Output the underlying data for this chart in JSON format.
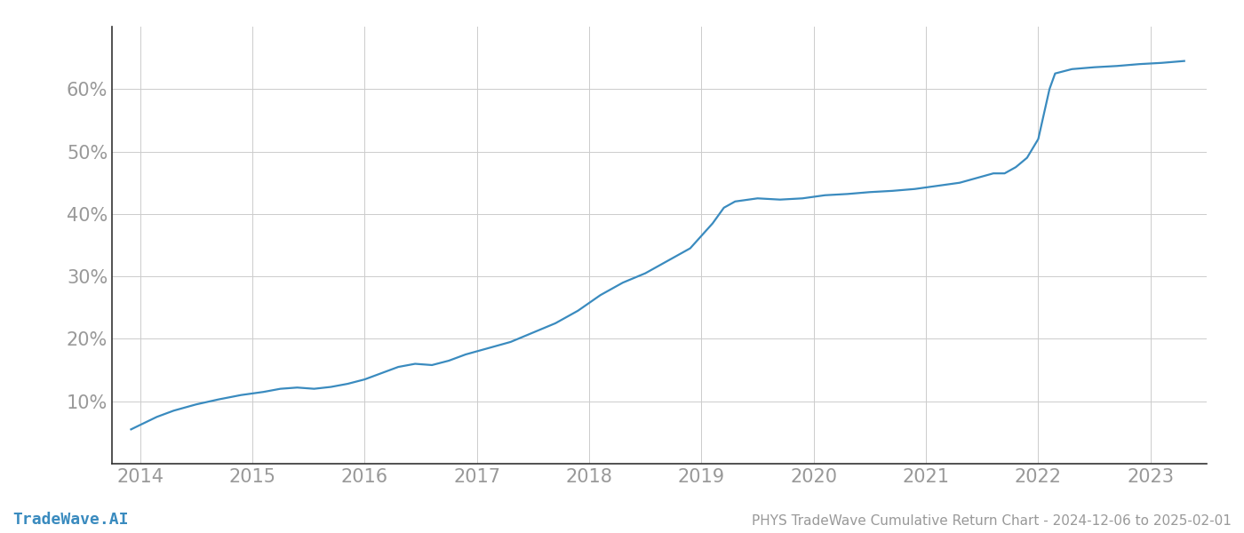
{
  "title": "PHYS TradeWave Cumulative Return Chart - 2024-12-06 to 2025-02-01",
  "watermark": "TradeWave.AI",
  "line_color": "#3a8bbf",
  "background_color": "#ffffff",
  "grid_color": "#cccccc",
  "x_years": [
    2014,
    2015,
    2016,
    2017,
    2018,
    2019,
    2020,
    2021,
    2022,
    2023
  ],
  "data_points": [
    [
      2013.92,
      5.5
    ],
    [
      2014.0,
      6.2
    ],
    [
      2014.15,
      7.5
    ],
    [
      2014.3,
      8.5
    ],
    [
      2014.5,
      9.5
    ],
    [
      2014.7,
      10.3
    ],
    [
      2014.9,
      11.0
    ],
    [
      2015.1,
      11.5
    ],
    [
      2015.25,
      12.0
    ],
    [
      2015.4,
      12.2
    ],
    [
      2015.55,
      12.0
    ],
    [
      2015.7,
      12.3
    ],
    [
      2015.85,
      12.8
    ],
    [
      2016.0,
      13.5
    ],
    [
      2016.15,
      14.5
    ],
    [
      2016.3,
      15.5
    ],
    [
      2016.45,
      16.0
    ],
    [
      2016.6,
      15.8
    ],
    [
      2016.75,
      16.5
    ],
    [
      2016.9,
      17.5
    ],
    [
      2017.1,
      18.5
    ],
    [
      2017.3,
      19.5
    ],
    [
      2017.5,
      21.0
    ],
    [
      2017.7,
      22.5
    ],
    [
      2017.9,
      24.5
    ],
    [
      2018.1,
      27.0
    ],
    [
      2018.3,
      29.0
    ],
    [
      2018.5,
      30.5
    ],
    [
      2018.7,
      32.5
    ],
    [
      2018.9,
      34.5
    ],
    [
      2019.0,
      36.5
    ],
    [
      2019.1,
      38.5
    ],
    [
      2019.2,
      41.0
    ],
    [
      2019.3,
      42.0
    ],
    [
      2019.5,
      42.5
    ],
    [
      2019.7,
      42.3
    ],
    [
      2019.9,
      42.5
    ],
    [
      2020.1,
      43.0
    ],
    [
      2020.3,
      43.2
    ],
    [
      2020.5,
      43.5
    ],
    [
      2020.7,
      43.7
    ],
    [
      2020.9,
      44.0
    ],
    [
      2021.1,
      44.5
    ],
    [
      2021.3,
      45.0
    ],
    [
      2021.5,
      46.0
    ],
    [
      2021.6,
      46.5
    ],
    [
      2021.7,
      46.5
    ],
    [
      2021.8,
      47.5
    ],
    [
      2021.9,
      49.0
    ],
    [
      2022.0,
      52.0
    ],
    [
      2022.05,
      56.0
    ],
    [
      2022.1,
      60.0
    ],
    [
      2022.15,
      62.5
    ],
    [
      2022.3,
      63.2
    ],
    [
      2022.5,
      63.5
    ],
    [
      2022.7,
      63.7
    ],
    [
      2022.9,
      64.0
    ],
    [
      2023.1,
      64.2
    ],
    [
      2023.3,
      64.5
    ]
  ],
  "ylim": [
    0,
    70
  ],
  "yticks": [
    10,
    20,
    30,
    40,
    50,
    60
  ],
  "xlim": [
    2013.75,
    2023.5
  ],
  "title_fontsize": 11,
  "watermark_fontsize": 13,
  "tick_label_color": "#999999",
  "axis_color": "#333333",
  "tick_fontsize": 15
}
